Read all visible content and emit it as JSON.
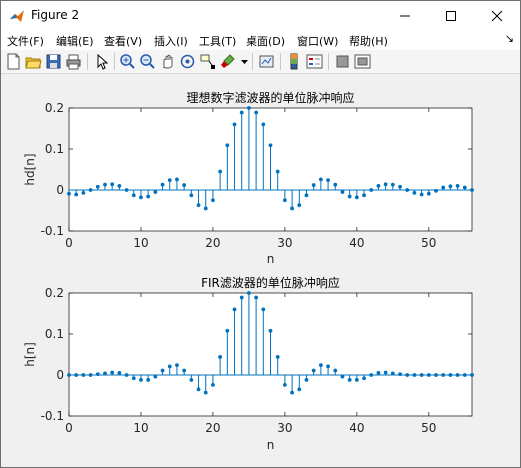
{
  "window": {
    "title": "Figure 2"
  },
  "menu": [
    "文件(F)",
    "编辑(E)",
    "查看(V)",
    "插入(I)",
    "工具(T)",
    "桌面(D)",
    "窗口(W)",
    "帮助(H)"
  ],
  "toolbar": [
    "new-figure-icon",
    "open-file-icon",
    "save-icon",
    "print-icon",
    "pointer-icon",
    "zoom-in-icon",
    "zoom-out-icon",
    "pan-icon",
    "rotate-3d-icon",
    "data-cursor-icon",
    "brush-icon",
    "link-plot-icon",
    "colorbar-icon",
    "legend-icon",
    "hide-plot-tools-icon",
    "show-plot-tools-icon"
  ],
  "chart_data": [
    {
      "type": "stem",
      "title": "理想数字滤波器的单位脉冲响应",
      "xlabel": "n",
      "ylabel": "hd[n]",
      "xlim": [
        0,
        56
      ],
      "ylim": [
        -0.1,
        0.2
      ],
      "xticks": [
        0,
        10,
        20,
        30,
        40,
        50
      ],
      "yticks": [
        -0.1,
        0,
        0.1,
        0.2
      ],
      "color": "#0072bd",
      "x": [
        0,
        1,
        2,
        3,
        4,
        5,
        6,
        7,
        8,
        9,
        10,
        11,
        12,
        13,
        14,
        15,
        16,
        17,
        18,
        19,
        20,
        21,
        22,
        23,
        24,
        25,
        26,
        27,
        28,
        29,
        30,
        31,
        32,
        33,
        34,
        35,
        36,
        37,
        38,
        39,
        40,
        41,
        42,
        43,
        44,
        45,
        46,
        47,
        48,
        49,
        50,
        51,
        52,
        53,
        54,
        55,
        56
      ],
      "values": [
        -0.009,
        -0.011,
        -0.007,
        0.0,
        0.008,
        0.013,
        0.014,
        0.01,
        0.0,
        -0.013,
        -0.018,
        -0.016,
        -0.005,
        0.013,
        0.024,
        0.026,
        0.012,
        -0.013,
        -0.037,
        -0.045,
        -0.025,
        0.045,
        0.109,
        0.16,
        0.189,
        0.2,
        0.189,
        0.16,
        0.109,
        0.045,
        -0.025,
        -0.045,
        -0.037,
        -0.013,
        0.012,
        0.026,
        0.024,
        0.013,
        -0.005,
        -0.016,
        -0.018,
        -0.013,
        0.0,
        0.01,
        0.014,
        0.013,
        0.008,
        0.0,
        -0.007,
        -0.011,
        -0.009,
        -0.002,
        0.006,
        0.009,
        0.01,
        0.006,
        0.0
      ]
    },
    {
      "type": "stem",
      "title": "FIR滤波器的单位脉冲响应",
      "xlabel": "n",
      "ylabel": "h[n]",
      "xlim": [
        0,
        56
      ],
      "ylim": [
        -0.1,
        0.2
      ],
      "xticks": [
        0,
        10,
        20,
        30,
        40,
        50
      ],
      "yticks": [
        -0.1,
        0,
        0.1,
        0.2
      ],
      "color": "#0072bd",
      "x": [
        0,
        1,
        2,
        3,
        4,
        5,
        6,
        7,
        8,
        9,
        10,
        11,
        12,
        13,
        14,
        15,
        16,
        17,
        18,
        19,
        20,
        21,
        22,
        23,
        24,
        25,
        26,
        27,
        28,
        29,
        30,
        31,
        32,
        33,
        34,
        35,
        36,
        37,
        38,
        39,
        40,
        41,
        42,
        43,
        44,
        45,
        46,
        47,
        48,
        49,
        50,
        51,
        52,
        53,
        54,
        55,
        56
      ],
      "values": [
        0.0,
        0.0,
        0.0,
        0.0,
        0.002,
        0.004,
        0.006,
        0.005,
        0.0,
        -0.008,
        -0.012,
        -0.012,
        -0.004,
        0.011,
        0.021,
        0.024,
        0.011,
        -0.012,
        -0.035,
        -0.043,
        -0.024,
        0.044,
        0.108,
        0.16,
        0.189,
        0.2,
        0.189,
        0.16,
        0.108,
        0.044,
        -0.024,
        -0.043,
        -0.035,
        -0.012,
        0.011,
        0.024,
        0.021,
        0.011,
        -0.004,
        -0.012,
        -0.012,
        -0.008,
        0.0,
        0.005,
        0.006,
        0.004,
        0.002,
        0.0,
        0.0,
        0.0,
        0.0,
        0.0,
        0.0,
        0.0,
        0.0,
        0.0,
        0.0
      ]
    }
  ]
}
